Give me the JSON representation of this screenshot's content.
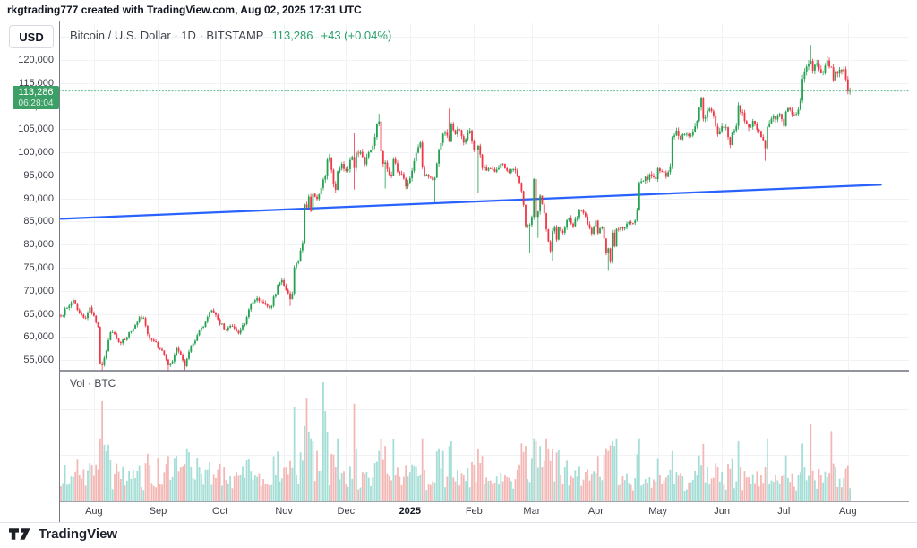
{
  "attribution": "rkgtrading777 created with TradingView.com, Aug 02, 2025 17:31 UTC",
  "header": {
    "currency_button": "USD",
    "symbol_title": "Bitcoin / U.S. Dollar · 1D · BITSTAMP",
    "last_price": "113,286",
    "change": "+43 (+0.04%)"
  },
  "price_label": {
    "price": "113,286",
    "countdown": "06:28:04"
  },
  "volume_pane": {
    "label": "Vol · BTC"
  },
  "footer": {
    "brand": "TradingView"
  },
  "colors": {
    "up": "#23a050",
    "down": "#f23645",
    "vol_up": "#a5ded6",
    "vol_down": "#f3b8b6",
    "trendline": "#2962ff",
    "last_price_line": "rgba(44,166,103,0.75)",
    "badge": "#3ca066",
    "grid": "#f0f2f5",
    "axis_line": "#767a84",
    "value_green": "#26a269"
  },
  "chart_data": {
    "type": "candlestick",
    "title": "Bitcoin / U.S. Dollar",
    "interval": "1D",
    "exchange": "BITSTAMP",
    "start_date": "2024-07-16",
    "end_date": "2025-08-02",
    "last_close": 113286,
    "change_text": "+43 (+0.04%)",
    "price_axis": {
      "min": 52900,
      "max": 127950,
      "ticks": [
        120000,
        115000,
        110000,
        105000,
        100000,
        95000,
        90000,
        85000,
        80000,
        75000,
        70000,
        65000,
        60000,
        55000
      ]
    },
    "time_axis": {
      "ticks": [
        {
          "label": "Aug",
          "day": 16
        },
        {
          "label": "Sep",
          "day": 47
        },
        {
          "label": "Oct",
          "day": 77
        },
        {
          "label": "Nov",
          "day": 108
        },
        {
          "label": "Dec",
          "day": 138
        },
        {
          "label": "2025",
          "day": 169,
          "bold": true
        },
        {
          "label": "Feb",
          "day": 200
        },
        {
          "label": "Mar",
          "day": 228
        },
        {
          "label": "Apr",
          "day": 259
        },
        {
          "label": "May",
          "day": 289
        },
        {
          "label": "Jun",
          "day": 320
        },
        {
          "label": "Jul",
          "day": 350
        },
        {
          "label": "Aug",
          "day": 381
        }
      ]
    },
    "close_anchors": [
      [
        0,
        64500
      ],
      [
        3,
        66300
      ],
      [
        6,
        68000
      ],
      [
        9,
        65200
      ],
      [
        12,
        64100
      ],
      [
        14,
        66400
      ],
      [
        16,
        64600
      ],
      [
        18,
        62200
      ],
      [
        19,
        54300
      ],
      [
        20,
        53900
      ],
      [
        22,
        57000
      ],
      [
        24,
        61000
      ],
      [
        26,
        60600
      ],
      [
        28,
        58900
      ],
      [
        31,
        59400
      ],
      [
        34,
        61200
      ],
      [
        38,
        64300
      ],
      [
        40,
        64100
      ],
      [
        43,
        59600
      ],
      [
        45,
        59100
      ],
      [
        48,
        57400
      ],
      [
        50,
        56200
      ],
      [
        52,
        53900
      ],
      [
        54,
        54700
      ],
      [
        56,
        57600
      ],
      [
        58,
        56100
      ],
      [
        60,
        53700
      ],
      [
        63,
        58100
      ],
      [
        66,
        60400
      ],
      [
        70,
        63300
      ],
      [
        73,
        65800
      ],
      [
        76,
        63800
      ],
      [
        79,
        61700
      ],
      [
        82,
        62400
      ],
      [
        86,
        60800
      ],
      [
        89,
        62800
      ],
      [
        92,
        67100
      ],
      [
        95,
        68400
      ],
      [
        99,
        67100
      ],
      [
        102,
        66700
      ],
      [
        105,
        71300
      ],
      [
        107,
        72300
      ],
      [
        109,
        70200
      ],
      [
        111,
        68200
      ],
      [
        112,
        69400
      ],
      [
        113,
        75100
      ],
      [
        115,
        76500
      ],
      [
        117,
        80400
      ],
      [
        118,
        88700
      ],
      [
        119,
        88100
      ],
      [
        120,
        90400
      ],
      [
        121,
        87300
      ],
      [
        122,
        91000
      ],
      [
        124,
        89900
      ],
      [
        126,
        92300
      ],
      [
        128,
        94800
      ],
      [
        129,
        98400
      ],
      [
        130,
        98900
      ],
      [
        132,
        93100
      ],
      [
        133,
        91900
      ],
      [
        134,
        95900
      ],
      [
        136,
        97500
      ],
      [
        137,
        96400
      ],
      [
        138,
        96000
      ],
      [
        141,
        99000
      ],
      [
        142,
        96600
      ],
      [
        143,
        99900
      ],
      [
        145,
        100100
      ],
      [
        147,
        97400
      ],
      [
        149,
        100000
      ],
      [
        151,
        101400
      ],
      [
        153,
        106100
      ],
      [
        154,
        106700
      ],
      [
        155,
        100200
      ],
      [
        156,
        97500
      ],
      [
        157,
        97800
      ],
      [
        159,
        95200
      ],
      [
        160,
        94900
      ],
      [
        161,
        98500
      ],
      [
        163,
        95800
      ],
      [
        165,
        95300
      ],
      [
        167,
        92600
      ],
      [
        168,
        93400
      ],
      [
        169,
        94400
      ],
      [
        171,
        98100
      ],
      [
        174,
        102100
      ],
      [
        175,
        96900
      ],
      [
        176,
        95000
      ],
      [
        178,
        94700
      ],
      [
        181,
        94500
      ],
      [
        183,
        100500
      ],
      [
        185,
        104000
      ],
      [
        186,
        104400
      ],
      [
        188,
        102300
      ],
      [
        189,
        106100
      ],
      [
        191,
        103900
      ],
      [
        193,
        104800
      ],
      [
        195,
        102100
      ],
      [
        198,
        104700
      ],
      [
        199,
        102400
      ],
      [
        200,
        100600
      ],
      [
        202,
        101400
      ],
      [
        204,
        96600
      ],
      [
        207,
        96500
      ],
      [
        210,
        95800
      ],
      [
        212,
        96600
      ],
      [
        214,
        97500
      ],
      [
        217,
        95600
      ],
      [
        220,
        96100
      ],
      [
        223,
        91600
      ],
      [
        224,
        88600
      ],
      [
        225,
        84000
      ],
      [
        227,
        84300
      ],
      [
        228,
        86000
      ],
      [
        229,
        94200
      ],
      [
        230,
        86000
      ],
      [
        231,
        87200
      ],
      [
        232,
        90600
      ],
      [
        234,
        86800
      ],
      [
        236,
        80700
      ],
      [
        237,
        78600
      ],
      [
        238,
        82900
      ],
      [
        239,
        83700
      ],
      [
        240,
        81100
      ],
      [
        241,
        83900
      ],
      [
        243,
        82600
      ],
      [
        246,
        85800
      ],
      [
        248,
        84000
      ],
      [
        251,
        87500
      ],
      [
        253,
        86900
      ],
      [
        255,
        84400
      ],
      [
        257,
        82400
      ],
      [
        259,
        85200
      ],
      [
        260,
        82500
      ],
      [
        262,
        83900
      ],
      [
        264,
        78200
      ],
      [
        265,
        79200
      ],
      [
        266,
        76300
      ],
      [
        267,
        82600
      ],
      [
        268,
        79600
      ],
      [
        269,
        83400
      ],
      [
        271,
        83800
      ],
      [
        273,
        83700
      ],
      [
        275,
        84900
      ],
      [
        278,
        85200
      ],
      [
        279,
        87500
      ],
      [
        280,
        93400
      ],
      [
        281,
        93700
      ],
      [
        283,
        94700
      ],
      [
        286,
        95000
      ],
      [
        288,
        94200
      ],
      [
        289,
        96500
      ],
      [
        291,
        95900
      ],
      [
        293,
        94700
      ],
      [
        295,
        97000
      ],
      [
        296,
        103300
      ],
      [
        298,
        104700
      ],
      [
        300,
        102800
      ],
      [
        302,
        103900
      ],
      [
        304,
        103500
      ],
      [
        306,
        104500
      ],
      [
        308,
        106800
      ],
      [
        309,
        109700
      ],
      [
        310,
        111700
      ],
      [
        311,
        107300
      ],
      [
        313,
        109000
      ],
      [
        315,
        108900
      ],
      [
        317,
        105600
      ],
      [
        318,
        103900
      ],
      [
        319,
        104600
      ],
      [
        320,
        105600
      ],
      [
        322,
        105400
      ],
      [
        324,
        101600
      ],
      [
        325,
        104400
      ],
      [
        327,
        105700
      ],
      [
        328,
        110200
      ],
      [
        330,
        108600
      ],
      [
        332,
        106100
      ],
      [
        334,
        105500
      ],
      [
        335,
        106800
      ],
      [
        337,
        104900
      ],
      [
        339,
        103300
      ],
      [
        341,
        100900
      ],
      [
        342,
        105500
      ],
      [
        344,
        107300
      ],
      [
        346,
        107100
      ],
      [
        348,
        108300
      ],
      [
        349,
        107200
      ],
      [
        350,
        105700
      ],
      [
        351,
        108800
      ],
      [
        352,
        109600
      ],
      [
        354,
        108200
      ],
      [
        356,
        108300
      ],
      [
        358,
        111200
      ],
      [
        359,
        115900
      ],
      [
        360,
        117500
      ],
      [
        362,
        119100
      ],
      [
        363,
        119800
      ],
      [
        364,
        117700
      ],
      [
        366,
        119300
      ],
      [
        367,
        118000
      ],
      [
        369,
        117300
      ],
      [
        371,
        119900
      ],
      [
        373,
        118400
      ],
      [
        374,
        115600
      ],
      [
        375,
        117500
      ],
      [
        377,
        117900
      ],
      [
        379,
        118000
      ],
      [
        380,
        115800
      ],
      [
        381,
        113243
      ],
      [
        382,
        113286
      ]
    ],
    "last_candle": {
      "open": 113243,
      "close": 113286
    },
    "wicks": {
      "20": {
        "lo": 52800
      },
      "52": {
        "lo": 52600
      },
      "60": {
        "lo": 52700
      },
      "111": {
        "lo": 66800
      },
      "130": {
        "hi": 99600
      },
      "142": {
        "hi": 104100,
        "lo": 92000
      },
      "154": {
        "hi": 108300
      },
      "157": {
        "lo": 92200
      },
      "181": {
        "lo": 89200
      },
      "188": {
        "hi": 109400
      },
      "202": {
        "lo": 91300
      },
      "227": {
        "lo": 78200
      },
      "231": {
        "lo": 81500
      },
      "238": {
        "lo": 76600
      },
      "265": {
        "lo": 74400
      },
      "310": {
        "hi": 111900
      },
      "341": {
        "lo": 98200
      },
      "363": {
        "hi": 123200
      }
    },
    "volume_spikes": {
      "20": [
        0.8,
        "down"
      ],
      "21": [
        0.45,
        "up"
      ],
      "52": [
        0.36,
        "down"
      ],
      "113": [
        0.75,
        "up"
      ],
      "118": [
        0.6,
        "up"
      ],
      "119": [
        0.82,
        "down"
      ],
      "120": [
        0.55,
        "up"
      ],
      "121": [
        0.5,
        "up"
      ],
      "124": [
        0.4,
        "down"
      ],
      "127": [
        0.95,
        "up"
      ],
      "128": [
        0.72,
        "up"
      ],
      "129": [
        0.55,
        "up"
      ],
      "142": [
        0.78,
        "down"
      ],
      "154": [
        0.4,
        "up"
      ],
      "157": [
        0.44,
        "down"
      ],
      "185": [
        0.4,
        "up"
      ],
      "188": [
        0.44,
        "up"
      ],
      "202": [
        0.42,
        "down"
      ],
      "223": [
        0.46,
        "down"
      ],
      "225": [
        0.44,
        "down"
      ],
      "230": [
        0.48,
        "down"
      ],
      "238": [
        0.42,
        "down"
      ],
      "265": [
        0.4,
        "down"
      ],
      "267": [
        0.48,
        "up"
      ],
      "268": [
        0.44,
        "up"
      ],
      "296": [
        0.4,
        "up"
      ],
      "363": [
        0.62,
        "down"
      ],
      "373": [
        0.56,
        "down"
      ]
    },
    "trendline": {
      "day1": 0,
      "price1": 85600,
      "day2": 397,
      "price2": 93000
    },
    "last_price_line": {
      "price": 113286,
      "style": "dotted"
    }
  }
}
